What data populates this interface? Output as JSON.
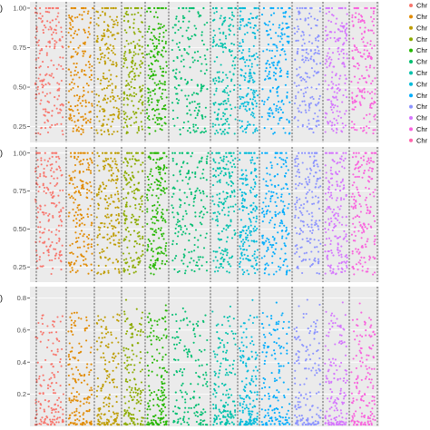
{
  "colors": {
    "panel_bg": "#ebebeb",
    "grid_major": "#ffffff",
    "boundary_line": "#1a1a1a",
    "chromosome_palette": [
      "#F8766D",
      "#E18A00",
      "#BE9C00",
      "#8CAB00",
      "#24B700",
      "#00BE70",
      "#00C1AB",
      "#00BBDA",
      "#00ACFC",
      "#8B93FF",
      "#D575FE",
      "#F962DD",
      "#FF65AC"
    ]
  },
  "legend": {
    "items": [
      "Chr",
      "Chr",
      "Chr",
      "Chr",
      "Chr",
      "Chr",
      "Chr",
      "Chr",
      "Chr",
      "Chr",
      "Chr",
      "Chr",
      "Chr"
    ]
  },
  "chart_data": [
    {
      "type": "scatter",
      "panel_tag": ")",
      "y_ticks": [
        "0.25",
        "0.50",
        "0.75",
        "1.00"
      ],
      "y_tick_values": [
        0.25,
        0.5,
        0.75,
        1.0
      ],
      "ylim": [
        0.15,
        1.04
      ],
      "grid": true,
      "legend_position": "right",
      "groups": 13,
      "value_range": [
        0.2,
        1.0
      ],
      "top_band_value": 1.0
    },
    {
      "type": "scatter",
      "panel_tag": ")",
      "y_ticks": [
        "0.25",
        "0.50",
        "0.75",
        "1.00"
      ],
      "y_tick_values": [
        0.25,
        0.5,
        0.75,
        1.0
      ],
      "ylim": [
        0.15,
        1.04
      ],
      "grid": true,
      "groups": 13,
      "value_range": [
        0.2,
        1.0
      ],
      "top_band_value": 1.0
    },
    {
      "type": "scatter",
      "panel_tag": ")",
      "y_ticks": [
        "0.2",
        "0.4",
        "0.6",
        "0.8"
      ],
      "y_tick_values": [
        0.2,
        0.4,
        0.6,
        0.8
      ],
      "ylim": [
        0.0,
        0.87
      ],
      "grid": true,
      "groups": 13,
      "value_range": [
        0.0,
        0.8
      ]
    }
  ]
}
